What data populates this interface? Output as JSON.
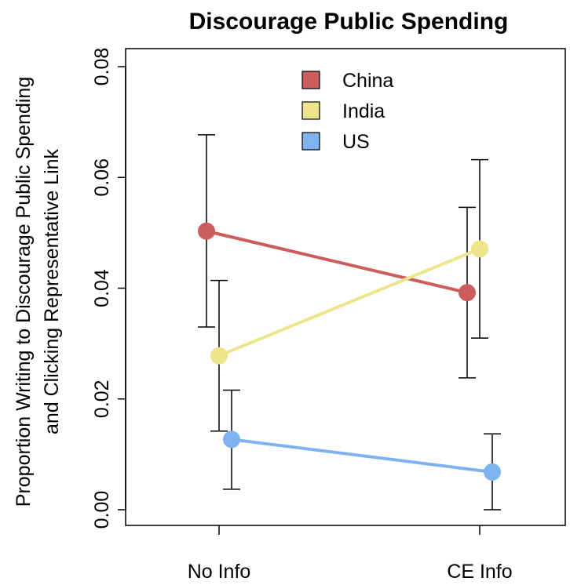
{
  "chart_data": {
    "type": "line",
    "title": "Discourage Public Spending",
    "ylabel_lines": [
      "Proportion Writing to Discourage Public Spending",
      "and Clicking Representative Link"
    ],
    "xlabel": "",
    "categories": [
      "No Info",
      "CE Info"
    ],
    "ylim": [
      0.0,
      0.08
    ],
    "yticks": [
      "0.00",
      "0.02",
      "0.04",
      "0.06",
      "0.08"
    ],
    "ytick_values": [
      0.0,
      0.02,
      0.04,
      0.06,
      0.08
    ],
    "grid": false,
    "legend_position": "top-center",
    "series": [
      {
        "name": "China",
        "color": "#cd5c5c",
        "values": [
          0.0503,
          0.0392
        ],
        "lower": [
          0.033,
          0.0238
        ],
        "upper": [
          0.0677,
          0.0546
        ]
      },
      {
        "name": "India",
        "color": "#eee58a",
        "values": [
          0.0278,
          0.0471
        ],
        "lower": [
          0.0142,
          0.031
        ],
        "upper": [
          0.0414,
          0.0632
        ]
      },
      {
        "name": "US",
        "color": "#7fb3f0",
        "values": [
          0.0127,
          0.0068
        ],
        "lower": [
          0.0037,
          0.0
        ],
        "upper": [
          0.0216,
          0.0137
        ]
      }
    ]
  }
}
